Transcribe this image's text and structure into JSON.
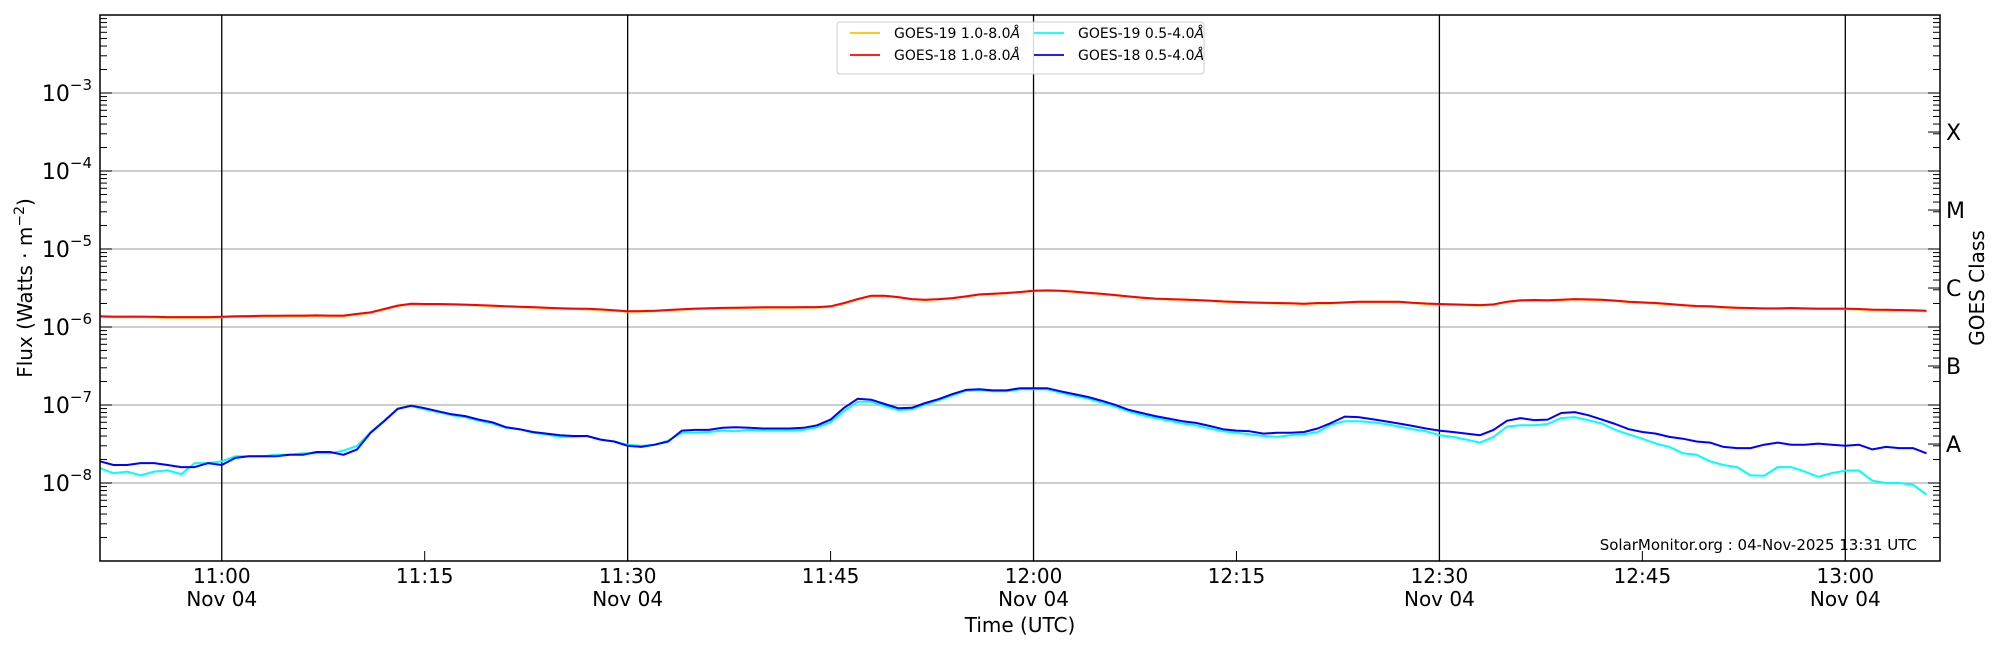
{
  "chart_data": {
    "type": "line",
    "xlabel": "Time (UTC)",
    "ylabel": "Flux (Watts · m",
    "ylabel_exponent": "−2",
    "ylabel_close": ")",
    "right_ylabel": "GOES Class",
    "yscale": "log",
    "ylim": [
      1e-09,
      0.01
    ],
    "xlim": [
      "10:51",
      "13:07"
    ],
    "grid": "horizontal at decades",
    "legend_placement": "top-center",
    "y_ticks": [
      {
        "value": 1e-08,
        "base": "10",
        "exp": "−8"
      },
      {
        "value": 1e-07,
        "base": "10",
        "exp": "−7"
      },
      {
        "value": 1e-06,
        "base": "10",
        "exp": "−6"
      },
      {
        "value": 1e-05,
        "base": "10",
        "exp": "−5"
      },
      {
        "value": 0.0001,
        "base": "10",
        "exp": "−4"
      },
      {
        "value": 0.001,
        "base": "10",
        "exp": "−3"
      }
    ],
    "class_labels": [
      {
        "label": "A",
        "value": 3.16e-08
      },
      {
        "label": "B",
        "value": 3.16e-07
      },
      {
        "label": "C",
        "value": 3.16e-06
      },
      {
        "label": "M",
        "value": 3.16e-05
      },
      {
        "label": "X",
        "value": 0.000316
      }
    ],
    "x_ticks": [
      {
        "time": "11:00",
        "label": "11:00",
        "date": "Nov 04",
        "vline": true
      },
      {
        "time": "11:15",
        "label": "11:15",
        "date": "",
        "vline": false
      },
      {
        "time": "11:30",
        "label": "11:30",
        "date": "Nov 04",
        "vline": true
      },
      {
        "time": "11:45",
        "label": "11:45",
        "date": "",
        "vline": false
      },
      {
        "time": "12:00",
        "label": "12:00",
        "date": "Nov 04",
        "vline": true
      },
      {
        "time": "12:15",
        "label": "12:15",
        "date": "",
        "vline": false
      },
      {
        "time": "12:30",
        "label": "12:30",
        "date": "Nov 04",
        "vline": true
      },
      {
        "time": "12:45",
        "label": "12:45",
        "date": "",
        "vline": false
      },
      {
        "time": "13:00",
        "label": "13:00",
        "date": "Nov 04",
        "vline": true
      }
    ],
    "annotation": "SolarMonitor.org : 04-Nov-2025 13:31 UTC",
    "x": [
      "10:51",
      "10:52",
      "10:53",
      "10:54",
      "10:55",
      "10:56",
      "10:57",
      "10:58",
      "10:59",
      "11:00",
      "11:01",
      "11:02",
      "11:03",
      "11:04",
      "11:05",
      "11:06",
      "11:07",
      "11:08",
      "11:09",
      "11:10",
      "11:11",
      "11:12",
      "11:13",
      "11:14",
      "11:15",
      "11:16",
      "11:17",
      "11:18",
      "11:19",
      "11:20",
      "11:21",
      "11:22",
      "11:23",
      "11:24",
      "11:25",
      "11:26",
      "11:27",
      "11:28",
      "11:29",
      "11:30",
      "11:31",
      "11:32",
      "11:33",
      "11:34",
      "11:35",
      "11:36",
      "11:37",
      "11:38",
      "11:39",
      "11:40",
      "11:41",
      "11:42",
      "11:43",
      "11:44",
      "11:45",
      "11:46",
      "11:47",
      "11:48",
      "11:49",
      "11:50",
      "11:51",
      "11:52",
      "11:53",
      "11:54",
      "11:55",
      "11:56",
      "11:57",
      "11:58",
      "11:59",
      "12:00",
      "12:01",
      "12:02",
      "12:03",
      "12:04",
      "12:05",
      "12:06",
      "12:07",
      "12:08",
      "12:09",
      "12:10",
      "12:11",
      "12:12",
      "12:13",
      "12:14",
      "12:15",
      "12:16",
      "12:17",
      "12:18",
      "12:19",
      "12:20",
      "12:21",
      "12:22",
      "12:23",
      "12:24",
      "12:25",
      "12:26",
      "12:27",
      "12:28",
      "12:29",
      "12:30",
      "12:31",
      "12:32",
      "12:33",
      "12:34",
      "12:35",
      "12:36",
      "12:37",
      "12:38",
      "12:39",
      "12:40",
      "12:41",
      "12:42",
      "12:43",
      "12:44",
      "12:45",
      "12:46",
      "12:47",
      "12:48",
      "12:49",
      "12:50",
      "12:51",
      "12:52",
      "12:53",
      "12:54",
      "12:55",
      "12:56",
      "12:57",
      "12:58",
      "12:59",
      "13:00",
      "13:01",
      "13:02",
      "13:03",
      "13:04",
      "13:05",
      "13:06"
    ],
    "series": [
      {
        "name": "GOES-19 1.0-8.0",
        "unit_suffix": "Å",
        "color": "#ffc000",
        "values": [
          1.35e-06,
          1.34e-06,
          1.34e-06,
          1.34e-06,
          1.33e-06,
          1.32e-06,
          1.32e-06,
          1.32e-06,
          1.32e-06,
          1.33e-06,
          1.35e-06,
          1.36e-06,
          1.37e-06,
          1.37e-06,
          1.38e-06,
          1.38e-06,
          1.39e-06,
          1.38e-06,
          1.38e-06,
          1.45e-06,
          1.52e-06,
          1.68e-06,
          1.86e-06,
          1.97e-06,
          1.95e-06,
          1.95e-06,
          1.94e-06,
          1.92e-06,
          1.89e-06,
          1.86e-06,
          1.83e-06,
          1.8e-06,
          1.78e-06,
          1.75e-06,
          1.72e-06,
          1.7e-06,
          1.69e-06,
          1.66e-06,
          1.62e-06,
          1.57e-06,
          1.58e-06,
          1.6e-06,
          1.63e-06,
          1.67e-06,
          1.7e-06,
          1.72e-06,
          1.74e-06,
          1.75e-06,
          1.76e-06,
          1.77e-06,
          1.77e-06,
          1.77e-06,
          1.78e-06,
          1.78e-06,
          1.82e-06,
          2.01e-06,
          2.26e-06,
          2.5e-06,
          2.5e-06,
          2.4e-06,
          2.26e-06,
          2.22e-06,
          2.26e-06,
          2.33e-06,
          2.45e-06,
          2.6e-06,
          2.65e-06,
          2.71e-06,
          2.79e-06,
          2.9e-06,
          2.93e-06,
          2.9e-06,
          2.82e-06,
          2.73e-06,
          2.65e-06,
          2.55e-06,
          2.45e-06,
          2.36e-06,
          2.29e-06,
          2.26e-06,
          2.23e-06,
          2.2e-06,
          2.16e-06,
          2.11e-06,
          2.08e-06,
          2.05e-06,
          2.03e-06,
          2.01e-06,
          2e-06,
          1.97e-06,
          2.01e-06,
          2.01e-06,
          2.05e-06,
          2.09e-06,
          2.09e-06,
          2.09e-06,
          2.09e-06,
          2.03e-06,
          1.98e-06,
          1.95e-06,
          1.93e-06,
          1.91e-06,
          1.89e-06,
          1.93e-06,
          2.09e-06,
          2.18e-06,
          2.2e-06,
          2.18e-06,
          2.22e-06,
          2.26e-06,
          2.24e-06,
          2.22e-06,
          2.16e-06,
          2.09e-06,
          2.05e-06,
          2.01e-06,
          1.95e-06,
          1.89e-06,
          1.84e-06,
          1.82e-06,
          1.78e-06,
          1.75e-06,
          1.73e-06,
          1.71e-06,
          1.71e-06,
          1.73e-06,
          1.71e-06,
          1.7e-06,
          1.7e-06,
          1.7e-06,
          1.68e-06,
          1.65e-06,
          1.64e-06,
          1.63e-06,
          1.62e-06,
          1.59e-06
        ]
      },
      {
        "name": "GOES-18 1.0-8.0",
        "unit_suffix": "Å",
        "color": "#ff0000",
        "values": [
          1.37e-06,
          1.36e-06,
          1.36e-06,
          1.36e-06,
          1.35e-06,
          1.34e-06,
          1.34e-06,
          1.34e-06,
          1.34e-06,
          1.35e-06,
          1.37e-06,
          1.38e-06,
          1.39e-06,
          1.39e-06,
          1.4e-06,
          1.4e-06,
          1.41e-06,
          1.4e-06,
          1.4e-06,
          1.47e-06,
          1.54e-06,
          1.7e-06,
          1.88e-06,
          1.99e-06,
          1.97e-06,
          1.97e-06,
          1.96e-06,
          1.94e-06,
          1.91e-06,
          1.88e-06,
          1.85e-06,
          1.82e-06,
          1.8e-06,
          1.77e-06,
          1.74e-06,
          1.72e-06,
          1.71e-06,
          1.68e-06,
          1.64e-06,
          1.59e-06,
          1.6e-06,
          1.62e-06,
          1.65e-06,
          1.69e-06,
          1.72e-06,
          1.74e-06,
          1.76e-06,
          1.77e-06,
          1.78e-06,
          1.79e-06,
          1.79e-06,
          1.79e-06,
          1.8e-06,
          1.8e-06,
          1.84e-06,
          2.03e-06,
          2.28e-06,
          2.52e-06,
          2.52e-06,
          2.42e-06,
          2.28e-06,
          2.24e-06,
          2.28e-06,
          2.35e-06,
          2.47e-06,
          2.62e-06,
          2.67e-06,
          2.73e-06,
          2.81e-06,
          2.92e-06,
          2.95e-06,
          2.92e-06,
          2.84e-06,
          2.75e-06,
          2.67e-06,
          2.57e-06,
          2.47e-06,
          2.38e-06,
          2.31e-06,
          2.28e-06,
          2.25e-06,
          2.22e-06,
          2.18e-06,
          2.13e-06,
          2.1e-06,
          2.07e-06,
          2.05e-06,
          2.03e-06,
          2.02e-06,
          1.99e-06,
          2.03e-06,
          2.03e-06,
          2.07e-06,
          2.11e-06,
          2.11e-06,
          2.11e-06,
          2.11e-06,
          2.05e-06,
          2e-06,
          1.97e-06,
          1.95e-06,
          1.93e-06,
          1.91e-06,
          1.95e-06,
          2.11e-06,
          2.2e-06,
          2.22e-06,
          2.2e-06,
          2.24e-06,
          2.28e-06,
          2.26e-06,
          2.24e-06,
          2.18e-06,
          2.11e-06,
          2.07e-06,
          2.03e-06,
          1.97e-06,
          1.91e-06,
          1.86e-06,
          1.84e-06,
          1.8e-06,
          1.77e-06,
          1.75e-06,
          1.73e-06,
          1.73e-06,
          1.75e-06,
          1.73e-06,
          1.72e-06,
          1.72e-06,
          1.72e-06,
          1.7e-06,
          1.67e-06,
          1.66e-06,
          1.65e-06,
          1.64e-06,
          1.62e-06
        ]
      },
      {
        "name": "GOES-19 0.5-4.0",
        "unit_suffix": "Å",
        "color": "#00ffff",
        "values": [
          1.55e-08,
          1.33e-08,
          1.4e-08,
          1.25e-08,
          1.4e-08,
          1.45e-08,
          1.3e-08,
          1.8e-08,
          1.8e-08,
          1.9e-08,
          2.2e-08,
          2.2e-08,
          2.2e-08,
          2.3e-08,
          2.3e-08,
          2.4e-08,
          2.4e-08,
          2.4e-08,
          2.6e-08,
          3e-08,
          4.5e-08,
          6.3e-08,
          9e-08,
          9.7e-08,
          8.8e-08,
          8.1e-08,
          7.4e-08,
          7e-08,
          6.3e-08,
          5.8e-08,
          5.1e-08,
          4.9e-08,
          4.4e-08,
          4.2e-08,
          3.9e-08,
          3.9e-08,
          4e-08,
          3.6e-08,
          3.4e-08,
          3.1e-08,
          3e-08,
          3.1e-08,
          3.5e-08,
          4.4e-08,
          4.4e-08,
          4.5e-08,
          4.7e-08,
          4.6e-08,
          4.8e-08,
          4.7e-08,
          4.7e-08,
          4.7e-08,
          4.8e-08,
          5.2e-08,
          6e-08,
          8.4e-08,
          1.1e-07,
          1.1e-07,
          9.7e-08,
          8.6e-08,
          8.8e-08,
          1.02e-07,
          1.15e-07,
          1.33e-07,
          1.52e-07,
          1.55e-07,
          1.5e-07,
          1.5e-07,
          1.59e-07,
          1.59e-07,
          1.59e-07,
          1.44e-07,
          1.32e-07,
          1.21e-07,
          1.08e-07,
          9.6e-08,
          8.3e-08,
          7.4e-08,
          6.8e-08,
          6.3e-08,
          5.8e-08,
          5.5e-08,
          5e-08,
          4.6e-08,
          4.4e-08,
          4.2e-08,
          4e-08,
          3.9e-08,
          4.1e-08,
          4.2e-08,
          4.5e-08,
          5.6e-08,
          6.2e-08,
          6.2e-08,
          6e-08,
          5.7e-08,
          5.3e-08,
          4.9e-08,
          4.6e-08,
          4.1e-08,
          3.9e-08,
          3.6e-08,
          3.3e-08,
          3.9e-08,
          5.3e-08,
          5.5e-08,
          5.5e-08,
          5.7e-08,
          6.8e-08,
          7e-08,
          6.4e-08,
          5.8e-08,
          4.8e-08,
          4.2e-08,
          3.7e-08,
          3.2e-08,
          2.9e-08,
          2.4e-08,
          2.3e-08,
          1.9e-08,
          1.7e-08,
          1.6e-08,
          1.25e-08,
          1.24e-08,
          1.6e-08,
          1.6e-08,
          1.4e-08,
          1.2e-08,
          1.34e-08,
          1.44e-08,
          1.45e-08,
          1.07e-08,
          1e-08,
          1e-08,
          9.5e-09,
          7.1e-09
        ]
      },
      {
        "name": "GOES-18 0.5-4.0",
        "unit_suffix": "Å",
        "color": "#0000ff",
        "values": [
          1.9e-08,
          1.7e-08,
          1.7e-08,
          1.8e-08,
          1.8e-08,
          1.7e-08,
          1.6e-08,
          1.6e-08,
          1.8e-08,
          1.7e-08,
          2.1e-08,
          2.2e-08,
          2.2e-08,
          2.2e-08,
          2.3e-08,
          2.3e-08,
          2.5e-08,
          2.5e-08,
          2.3e-08,
          2.7e-08,
          4.4e-08,
          6.2e-08,
          8.9e-08,
          9.8e-08,
          9.1e-08,
          8.3e-08,
          7.6e-08,
          7.2e-08,
          6.5e-08,
          6e-08,
          5.2e-08,
          4.9e-08,
          4.5e-08,
          4.3e-08,
          4.1e-08,
          4e-08,
          4e-08,
          3.6e-08,
          3.4e-08,
          3e-08,
          2.9e-08,
          3.1e-08,
          3.4e-08,
          4.7e-08,
          4.8e-08,
          4.8e-08,
          5.1e-08,
          5.2e-08,
          5.1e-08,
          5e-08,
          5e-08,
          5e-08,
          5.1e-08,
          5.5e-08,
          6.5e-08,
          9.2e-08,
          1.2e-07,
          1.17e-07,
          1.03e-07,
          9.1e-08,
          9.2e-08,
          1.06e-07,
          1.19e-07,
          1.38e-07,
          1.56e-07,
          1.59e-07,
          1.54e-07,
          1.54e-07,
          1.64e-07,
          1.64e-07,
          1.64e-07,
          1.5e-07,
          1.38e-07,
          1.27e-07,
          1.14e-07,
          1.01e-07,
          8.7e-08,
          7.9e-08,
          7.2e-08,
          6.7e-08,
          6.2e-08,
          5.9e-08,
          5.4e-08,
          4.9e-08,
          4.7e-08,
          4.6e-08,
          4.3e-08,
          4.4e-08,
          4.4e-08,
          4.5e-08,
          5e-08,
          5.9e-08,
          7.1e-08,
          7e-08,
          6.6e-08,
          6.2e-08,
          5.8e-08,
          5.4e-08,
          5e-08,
          4.7e-08,
          4.5e-08,
          4.3e-08,
          4.1e-08,
          4.8e-08,
          6.3e-08,
          6.8e-08,
          6.4e-08,
          6.5e-08,
          7.9e-08,
          8.1e-08,
          7.4e-08,
          6.5e-08,
          5.7e-08,
          4.9e-08,
          4.5e-08,
          4.3e-08,
          3.9e-08,
          3.7e-08,
          3.4e-08,
          3.3e-08,
          2.9e-08,
          2.8e-08,
          2.8e-08,
          3.1e-08,
          3.3e-08,
          3.1e-08,
          3.1e-08,
          3.2e-08,
          3.1e-08,
          3e-08,
          3.1e-08,
          2.7e-08,
          2.9e-08,
          2.8e-08,
          2.8e-08,
          2.4e-08
        ]
      }
    ]
  }
}
